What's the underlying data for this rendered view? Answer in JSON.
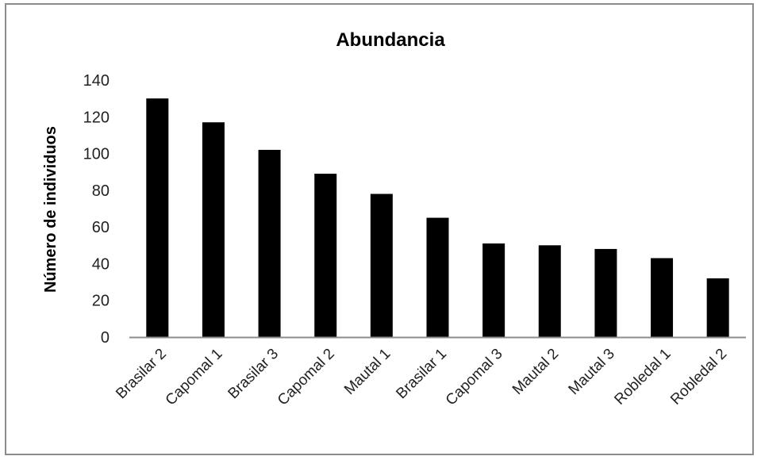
{
  "chart_data": {
    "type": "bar",
    "title": "Abundancia",
    "xlabel": "",
    "ylabel": "Número de individuos",
    "categories": [
      "Brasilar 2",
      "Capomal 1",
      "Brasilar 3",
      "Capomal 2",
      "Mautal 1",
      "Brasilar 1",
      "Capomal 3",
      "Mautal 2",
      "Mautal 3",
      "Robledal 1",
      "Robledal 2"
    ],
    "values": [
      130,
      117,
      102,
      89,
      78,
      65,
      51,
      50,
      48,
      43,
      32
    ],
    "ylim": [
      0,
      140
    ],
    "yticks": [
      "0",
      "20",
      "40",
      "60",
      "80",
      "100",
      "120",
      "140"
    ],
    "grid": false,
    "legend": "none",
    "bar_color": "#000000",
    "axis_color": "#8c8c8c"
  }
}
